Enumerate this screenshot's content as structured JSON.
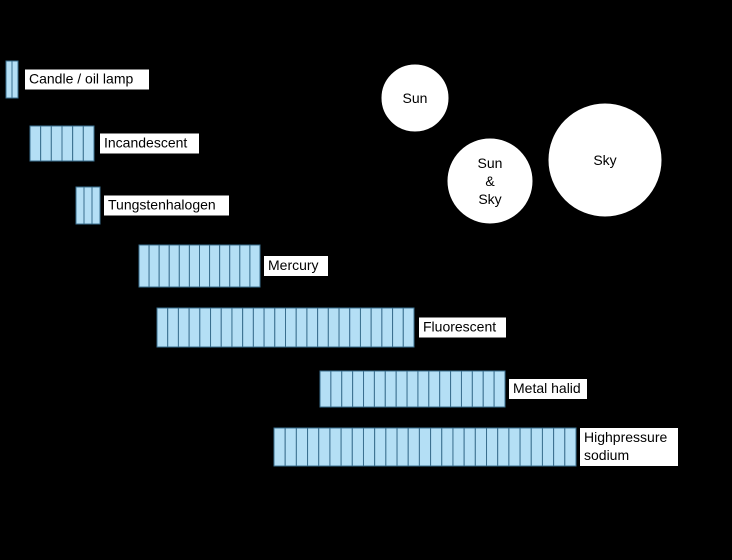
{
  "colors": {
    "background": "#000000",
    "bar_fill": "#b4dff5",
    "bar_stroke": "#3a6f8f",
    "label_box": "#ffffff",
    "text": "#000000",
    "sky_circle": "#ffffff"
  },
  "light_sources": [
    {
      "label": "Candle / oil lamp",
      "segments": 2
    },
    {
      "label": "Incandescent",
      "segments": 6
    },
    {
      "label": "Tungstenhalogen",
      "segments": 3
    },
    {
      "label": "Mercury",
      "segments": 12
    },
    {
      "label": "Fluorescent",
      "segments": 24
    },
    {
      "label": "Metal halid",
      "segments": 17
    },
    {
      "label": "Highpressure\nsodium",
      "segments": 27
    }
  ],
  "natural_light": [
    {
      "label": "Sun"
    },
    {
      "label": "Sun\n&\nSky"
    },
    {
      "label": "Sky"
    }
  ]
}
